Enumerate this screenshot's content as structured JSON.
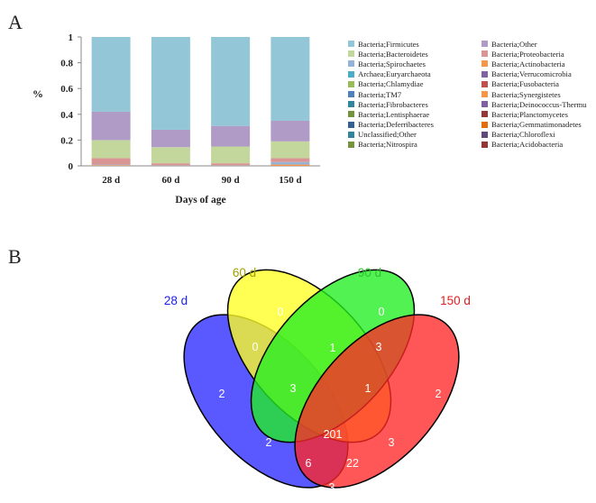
{
  "panels": {
    "a": "A",
    "b": "B"
  },
  "chart_data": [
    {
      "type": "bar",
      "stacked": true,
      "title": "",
      "xlabel": "Days of age",
      "ylabel": "%",
      "ylim": [
        0,
        1
      ],
      "yticks": [
        "0",
        "0.2",
        "0.4",
        "0.6",
        "0.8",
        "1"
      ],
      "categories": [
        "28 d",
        "60 d",
        "90 d",
        "150 d"
      ],
      "series": [
        {
          "name": "Bacteria;Firmicutes",
          "color": "#93c6d6",
          "values": [
            0.58,
            0.72,
            0.69,
            0.65
          ]
        },
        {
          "name": "Bacteria;Other",
          "color": "#b09ac6",
          "values": [
            0.22,
            0.135,
            0.16,
            0.16
          ]
        },
        {
          "name": "Bacteria;Bacteroidetes",
          "color": "#c3d69b",
          "values": [
            0.14,
            0.125,
            0.13,
            0.13
          ]
        },
        {
          "name": "Bacteria;Proteobacteria",
          "color": "#d99594",
          "values": [
            0.05,
            0.015,
            0.015,
            0.03
          ]
        },
        {
          "name": "Bacteria;Spirochaetes",
          "color": "#95b3d7",
          "values": [
            0.005,
            0.003,
            0.003,
            0.02
          ]
        },
        {
          "name": "Bacteria;Actinobacteria",
          "color": "#f79646",
          "values": [
            0.005,
            0.002,
            0.002,
            0.01
          ]
        }
      ],
      "legend_placement": "right",
      "legend": [
        {
          "name": "Bacteria;Firmicutes",
          "color": "#93c6d6"
        },
        {
          "name": "Bacteria;Other",
          "color": "#b09ac6"
        },
        {
          "name": "Bacteria;Bacteroidetes",
          "color": "#c3d69b"
        },
        {
          "name": "Bacteria;Proteobacteria",
          "color": "#d99594"
        },
        {
          "name": "Bacteria;Spirochaetes",
          "color": "#95b3d7"
        },
        {
          "name": "Bacteria;Actinobacteria",
          "color": "#f79646"
        },
        {
          "name": "Archaea;Euryarchaeota",
          "color": "#4bacc6"
        },
        {
          "name": "Bacteria;Verrucomicrobia",
          "color": "#8064a2"
        },
        {
          "name": "Bacteria;Chlamydiae",
          "color": "#9bbb59"
        },
        {
          "name": "Bacteria;Fusobacteria",
          "color": "#c0504d"
        },
        {
          "name": "Bacteria;TM7",
          "color": "#4f81bd"
        },
        {
          "name": "Bacteria;Synergistetes",
          "color": "#f79646"
        },
        {
          "name": "Bacteria;Fibrobacteres",
          "color": "#31859c"
        },
        {
          "name": "Bacteria;Deinococcus-Thermu",
          "color": "#7f60a0"
        },
        {
          "name": "Bacteria;Lentisphaerae",
          "color": "#76923c"
        },
        {
          "name": "Bacteria;Planctomycetes",
          "color": "#953735"
        },
        {
          "name": "Bacteria;Deferribacteres",
          "color": "#376092"
        },
        {
          "name": "Bacteria;Gemmatimonadetes",
          "color": "#e46c0a"
        },
        {
          "name": "Unclassified;Other",
          "color": "#31849b"
        },
        {
          "name": "Bacteria;Chloroflexi",
          "color": "#5f497a"
        },
        {
          "name": "Bacteria;Nitrospira",
          "color": "#77933c"
        },
        {
          "name": "Bacteria;Acidobacteria",
          "color": "#943634"
        }
      ]
    },
    {
      "type": "venn",
      "sets": [
        {
          "name": "28 d",
          "color": "#2020ee"
        },
        {
          "name": "60 d",
          "color": "#a0a000"
        },
        {
          "name": "90 d",
          "color": "#30c030"
        },
        {
          "name": "150 d",
          "color": "#e02020"
        }
      ],
      "regions": [
        {
          "sets": [
            "28 d"
          ],
          "value": 2
        },
        {
          "sets": [
            "60 d"
          ],
          "value": 0
        },
        {
          "sets": [
            "90 d"
          ],
          "value": 0
        },
        {
          "sets": [
            "150 d"
          ],
          "value": 2
        },
        {
          "sets": [
            "28 d",
            "60 d"
          ],
          "value": 0
        },
        {
          "sets": [
            "60 d",
            "90 d"
          ],
          "value": 1
        },
        {
          "sets": [
            "90 d",
            "150 d"
          ],
          "value": 3
        },
        {
          "sets": [
            "28 d",
            "90 d"
          ],
          "value": 2
        },
        {
          "sets": [
            "60 d",
            "150 d"
          ],
          "value": 3
        },
        {
          "sets": [
            "28 d",
            "150 d"
          ],
          "value": 3
        },
        {
          "sets": [
            "28 d",
            "60 d",
            "90 d"
          ],
          "value": 3
        },
        {
          "sets": [
            "60 d",
            "90 d",
            "150 d"
          ],
          "value": 1
        },
        {
          "sets": [
            "28 d",
            "90 d",
            "150 d"
          ],
          "value": 6
        },
        {
          "sets": [
            "28 d",
            "60 d",
            "150 d"
          ],
          "value": 22
        },
        {
          "sets": [
            "28 d",
            "60 d",
            "90 d",
            "150 d"
          ],
          "value": 201
        }
      ]
    }
  ]
}
